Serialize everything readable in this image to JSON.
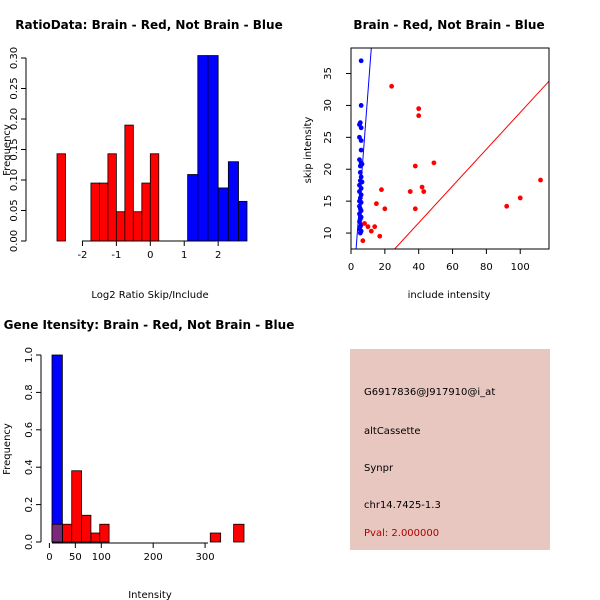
{
  "colors": {
    "brain": "#ff0000",
    "not_brain": "#0000ff",
    "overlap": "#7a2a7a",
    "info_bg": "#e7c7c0",
    "pval": "#b00000"
  },
  "chart_data": [
    {
      "id": "ratio",
      "type": "bar",
      "title": "RatioData: Brain - Red, Not Brain - Blue",
      "xlabel": "Log2 Ratio Skip/Include",
      "ylabel": "Frequency",
      "xlim": [
        -2.75,
        2.85
      ],
      "ylim": [
        0,
        0.3
      ],
      "xticks": [
        -2,
        -1,
        0,
        1,
        2
      ],
      "xtick_labels": [
        "-2",
        "-1",
        "0",
        "1",
        "2"
      ],
      "yticks": [
        0,
        0.05,
        0.1,
        0.15,
        0.2,
        0.25,
        0.3
      ],
      "ytick_labels": [
        "0.00",
        "0.05",
        "0.10",
        "0.15",
        "0.20",
        "0.25",
        "0.30"
      ],
      "series": [
        {
          "name": "Brain",
          "color": "red",
          "bins": [
            [
              -2.75,
              -2.5,
              0.143
            ],
            [
              -1.75,
              -1.5,
              0.095
            ],
            [
              -1.5,
              -1.25,
              0.095
            ],
            [
              -1.25,
              -1.0,
              0.143
            ],
            [
              -1.0,
              -0.75,
              0.048
            ],
            [
              -0.75,
              -0.5,
              0.19
            ],
            [
              -0.5,
              -0.25,
              0.048
            ],
            [
              -0.25,
              0.0,
              0.095
            ],
            [
              0.0,
              0.25,
              0.143
            ]
          ]
        },
        {
          "name": "Not Brain",
          "color": "blue",
          "bins": [
            [
              1.1,
              1.4,
              0.109
            ],
            [
              1.4,
              1.7,
              0.304
            ],
            [
              1.7,
              2.0,
              0.304
            ],
            [
              2.0,
              2.3,
              0.087
            ],
            [
              2.3,
              2.6,
              0.13
            ],
            [
              2.6,
              2.85,
              0.065
            ]
          ]
        }
      ]
    },
    {
      "id": "scatter",
      "type": "scatter",
      "title": "Brain - Red, Not Brain - Blue",
      "xlabel": "include intensity",
      "ylabel": "skip intensity",
      "xlim": [
        0,
        117
      ],
      "ylim": [
        7.5,
        39
      ],
      "xticks": [
        0,
        20,
        40,
        60,
        80,
        100
      ],
      "xtick_labels": [
        "0",
        "20",
        "40",
        "60",
        "80",
        "100"
      ],
      "yticks": [
        10,
        15,
        20,
        25,
        30,
        35
      ],
      "ytick_labels": [
        "10",
        "15",
        "20",
        "25",
        "30",
        "35"
      ],
      "series": [
        {
          "name": "Not Brain",
          "color": "blue",
          "points": [
            [
              6,
              37
            ],
            [
              6,
              30
            ],
            [
              5.5,
              27.3
            ],
            [
              5,
              27
            ],
            [
              6,
              26.5
            ],
            [
              5,
              25
            ],
            [
              6,
              24.5
            ],
            [
              6,
              23
            ],
            [
              5,
              21.5
            ],
            [
              6,
              21
            ],
            [
              5.5,
              20.5
            ],
            [
              6.5,
              20.8
            ],
            [
              5.5,
              19.5
            ],
            [
              6,
              18.8
            ],
            [
              5.5,
              18.2
            ],
            [
              6.5,
              18
            ],
            [
              5,
              17.5
            ],
            [
              6,
              17
            ],
            [
              5,
              16.5
            ],
            [
              6,
              16
            ],
            [
              5.5,
              15.5
            ],
            [
              5,
              15
            ],
            [
              6,
              14.8
            ],
            [
              5,
              14.2
            ],
            [
              5.5,
              13.8
            ],
            [
              6,
              13.5
            ],
            [
              5,
              13
            ],
            [
              6,
              12.5
            ],
            [
              5.5,
              12.2
            ],
            [
              5,
              11.8
            ],
            [
              6,
              11.3
            ],
            [
              5.5,
              11
            ],
            [
              5,
              10.6
            ],
            [
              6,
              10.3
            ],
            [
              5.5,
              10
            ]
          ]
        },
        {
          "name": "Brain",
          "color": "red",
          "points": [
            [
              7,
              8.8
            ],
            [
              8,
              11.5
            ],
            [
              10,
              11
            ],
            [
              12,
              10.3
            ],
            [
              14,
              11
            ],
            [
              15,
              14.6
            ],
            [
              17,
              9.5
            ],
            [
              18,
              16.8
            ],
            [
              20,
              13.8
            ],
            [
              24,
              33
            ],
            [
              35,
              16.5
            ],
            [
              38,
              20.5
            ],
            [
              38,
              13.8
            ],
            [
              40,
              29.5
            ],
            [
              40,
              28.4
            ],
            [
              42,
              17.2
            ],
            [
              43,
              16.5
            ],
            [
              49,
              21
            ],
            [
              92,
              14.2
            ],
            [
              100,
              15.5
            ],
            [
              112,
              18.3
            ]
          ]
        }
      ],
      "lines": [
        {
          "name": "Not Brain fit",
          "color": "blue",
          "from": [
            3,
            7.5
          ],
          "to": [
            12,
            39
          ]
        },
        {
          "name": "Brain fit",
          "color": "red",
          "from": [
            25.8,
            7.5
          ],
          "to": [
            117,
            33.8
          ]
        }
      ]
    },
    {
      "id": "intensity",
      "type": "bar",
      "title": "Gene Itensity: Brain - Red, Not Brain - Blue",
      "xlabel": "Intensity",
      "ylabel": "Frequency",
      "xlim": [
        5,
        375
      ],
      "ylim": [
        0,
        1.0
      ],
      "xticks": [
        0,
        50,
        100,
        200,
        300
      ],
      "xtick_labels": [
        "0",
        "50",
        "100",
        "200",
        "300"
      ],
      "yticks": [
        0,
        0.2,
        0.4,
        0.6,
        0.8,
        1.0
      ],
      "ytick_labels": [
        "0.0",
        "0.2",
        "0.4",
        "0.6",
        "0.8",
        "1.0"
      ],
      "series": [
        {
          "name": "Brain",
          "color": "red",
          "bins": [
            [
              5,
              25,
              0.095
            ],
            [
              25,
              43,
              0.095
            ],
            [
              43,
              62,
              0.381
            ],
            [
              62,
              80,
              0.143
            ],
            [
              80,
              97,
              0.048
            ],
            [
              97,
              115,
              0.095
            ],
            [
              310,
              330,
              0.048
            ],
            [
              355,
              375,
              0.095
            ]
          ]
        },
        {
          "name": "Not Brain",
          "color": "blue",
          "bins": [
            [
              5,
              25,
              1.0
            ]
          ]
        }
      ]
    }
  ],
  "info": {
    "probe": "G6917836@J917910@i_at",
    "event": "altCassette",
    "gene": "Synpr",
    "location": "chr14.7425-1.3",
    "pval": "Pval: 2.000000"
  }
}
